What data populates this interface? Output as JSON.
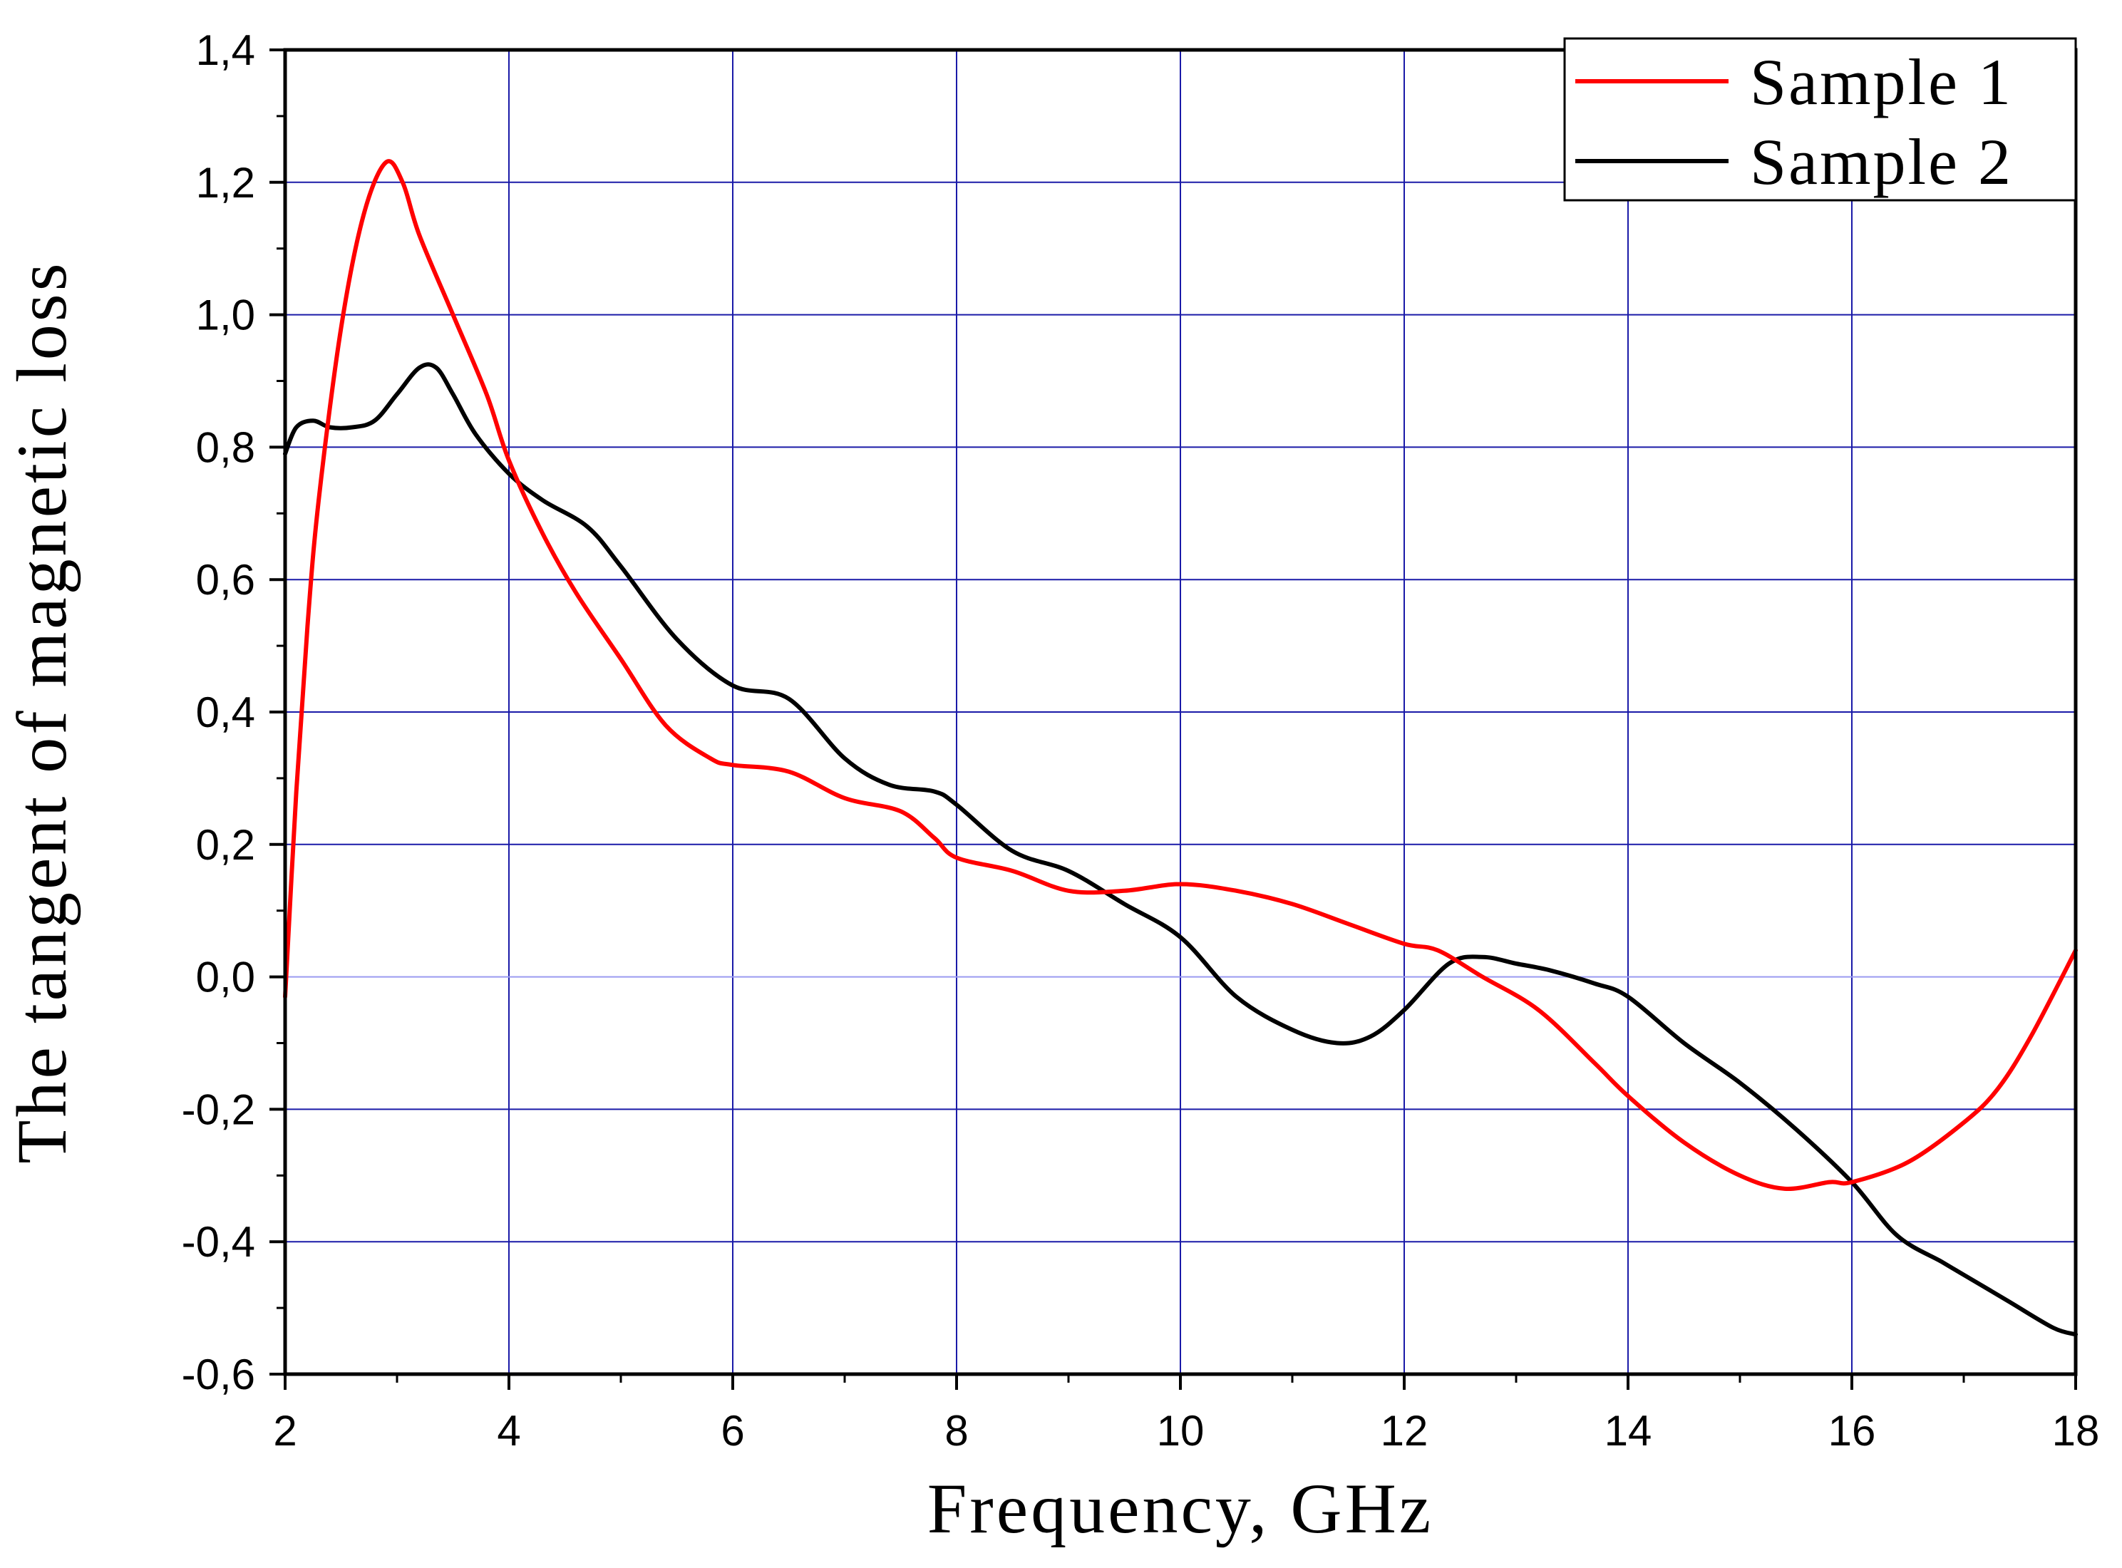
{
  "chart_data": {
    "type": "line",
    "title": "",
    "xlabel": "Frequency, GHz",
    "ylabel": "The tangent of magnetic loss",
    "xlim": [
      2,
      18
    ],
    "ylim": [
      -0.6,
      1.4
    ],
    "xticks": [
      2,
      4,
      6,
      8,
      10,
      12,
      14,
      16,
      18
    ],
    "xtick_labels": [
      "2",
      "4",
      "6",
      "8",
      "10",
      "12",
      "14",
      "16",
      "18"
    ],
    "yticks": [
      -0.6,
      -0.4,
      -0.2,
      0.0,
      0.2,
      0.4,
      0.6,
      0.8,
      1.0,
      1.2,
      1.4
    ],
    "ytick_labels": [
      "-0,6",
      "-0,4",
      "-0,2",
      "0,0",
      "0,2",
      "0,4",
      "0,6",
      "0,8",
      "1,0",
      "1,2",
      "1,4"
    ],
    "grid": true,
    "legend_position": "top-right",
    "colors": {
      "grid": "#1a1aa8",
      "zero_line": "#9a9af0",
      "axis": "#000000"
    },
    "series": [
      {
        "name": "Sample 1",
        "color": "#ff0000",
        "x": [
          2.0,
          2.1,
          2.2,
          2.3,
          2.5,
          2.7,
          2.9,
          3.05,
          3.2,
          3.5,
          3.8,
          4.0,
          4.3,
          4.6,
          5.0,
          5.4,
          5.8,
          6.0,
          6.5,
          7.0,
          7.5,
          7.8,
          8.0,
          8.5,
          9.0,
          9.5,
          10.0,
          10.5,
          11.0,
          11.5,
          12.0,
          12.3,
          12.7,
          13.2,
          13.7,
          14.0,
          14.5,
          15.0,
          15.4,
          15.8,
          16.0,
          16.5,
          17.0,
          17.3,
          17.6,
          18.0
        ],
        "y": [
          -0.03,
          0.28,
          0.53,
          0.72,
          0.98,
          1.15,
          1.23,
          1.2,
          1.12,
          1.0,
          0.88,
          0.78,
          0.67,
          0.58,
          0.48,
          0.38,
          0.33,
          0.32,
          0.31,
          0.27,
          0.25,
          0.21,
          0.18,
          0.16,
          0.13,
          0.13,
          0.14,
          0.13,
          0.11,
          0.08,
          0.05,
          0.04,
          0.0,
          -0.05,
          -0.13,
          -0.18,
          -0.25,
          -0.3,
          -0.32,
          -0.31,
          -0.31,
          -0.28,
          -0.22,
          -0.17,
          -0.09,
          0.04
        ]
      },
      {
        "name": "Sample 2",
        "color": "#000000",
        "x": [
          2.0,
          2.1,
          2.25,
          2.4,
          2.6,
          2.8,
          3.0,
          3.2,
          3.35,
          3.5,
          3.7,
          4.0,
          4.3,
          4.7,
          5.0,
          5.5,
          6.0,
          6.5,
          7.0,
          7.4,
          7.8,
          8.0,
          8.5,
          9.0,
          9.5,
          10.0,
          10.5,
          11.0,
          11.4,
          11.7,
          12.0,
          12.4,
          12.7,
          13.0,
          13.3,
          13.7,
          14.0,
          14.5,
          15.0,
          15.5,
          16.0,
          16.4,
          16.8,
          17.0,
          17.4,
          17.8,
          18.0
        ],
        "y": [
          0.79,
          0.83,
          0.84,
          0.83,
          0.83,
          0.84,
          0.88,
          0.92,
          0.92,
          0.88,
          0.82,
          0.76,
          0.72,
          0.68,
          0.62,
          0.51,
          0.44,
          0.42,
          0.33,
          0.29,
          0.28,
          0.26,
          0.19,
          0.16,
          0.11,
          0.06,
          -0.03,
          -0.08,
          -0.1,
          -0.09,
          -0.05,
          0.02,
          0.03,
          0.02,
          0.01,
          -0.01,
          -0.03,
          -0.1,
          -0.16,
          -0.23,
          -0.31,
          -0.39,
          -0.43,
          -0.45,
          -0.49,
          -0.53,
          -0.54
        ]
      }
    ]
  }
}
